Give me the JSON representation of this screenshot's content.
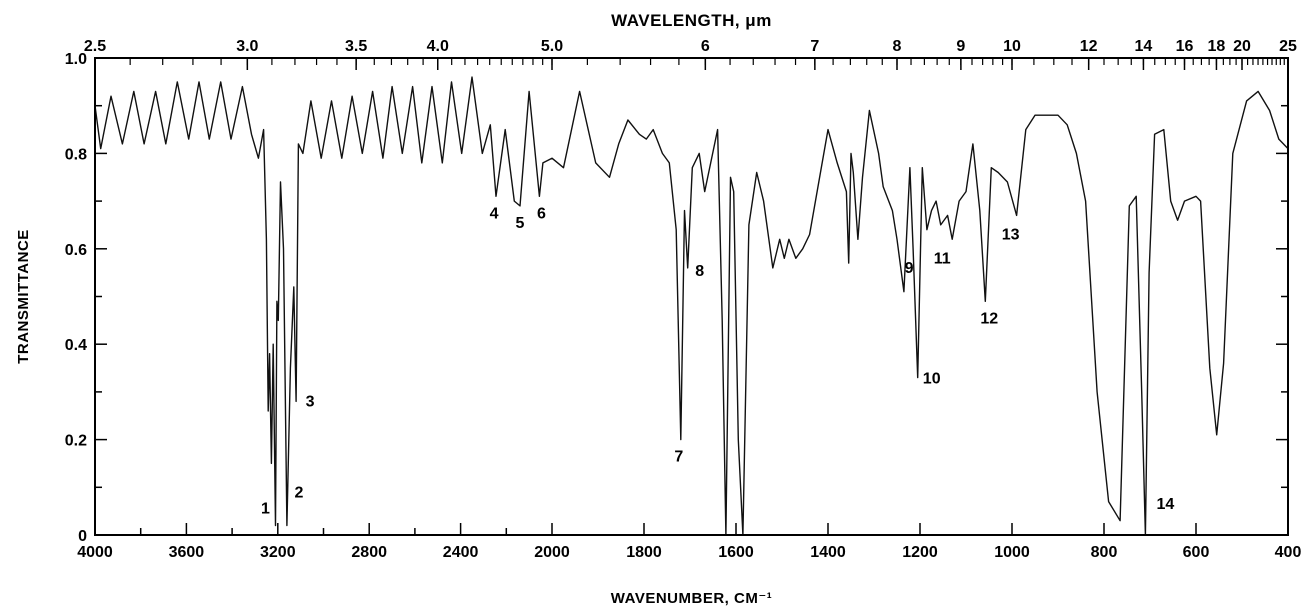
{
  "chart_data": {
    "type": "line",
    "title": "",
    "xlabel": "WAVENUMBER, CM⁻¹",
    "ylabel": "TRANSMITTANCE",
    "top_axis_label": "WAVELENGTH, μm",
    "x_direction": "decreasing",
    "x_scale": "piecewise-linear (4000-2000 compressed, 2000-400 expanded)",
    "xlim": [
      4000,
      400
    ],
    "ylim": [
      0,
      1.0
    ],
    "grid": false,
    "x_ticks": [
      "4000",
      "3600",
      "3200",
      "2800",
      "2400",
      "2000",
      "1800",
      "1600",
      "1400",
      "1200",
      "1000",
      "800",
      "600",
      "400"
    ],
    "y_ticks": [
      "0",
      "0.2",
      "0.4",
      "0.6",
      "0.8",
      "1.0"
    ],
    "top_ticks": [
      {
        "label": "2.5",
        "um": 2.5
      },
      {
        "label": "3.0",
        "um": 3.0
      },
      {
        "label": "3.5",
        "um": 3.5
      },
      {
        "label": "4.0",
        "um": 4.0
      },
      {
        "label": "5.0",
        "um": 5.0
      },
      {
        "label": "6",
        "um": 6
      },
      {
        "label": "7",
        "um": 7
      },
      {
        "label": "8",
        "um": 8
      },
      {
        "label": "9",
        "um": 9
      },
      {
        "label": "10",
        "um": 10
      },
      {
        "label": "12",
        "um": 12
      },
      {
        "label": "14",
        "um": 14
      },
      {
        "label": "16",
        "um": 16
      },
      {
        "label": "18",
        "um": 18
      },
      {
        "label": "20",
        "um": 20
      },
      {
        "label": "25",
        "um": 25
      }
    ],
    "series": [
      {
        "points": [
          [
            4000,
            0.9
          ],
          [
            3975,
            0.81
          ],
          [
            3930,
            0.92
          ],
          [
            3880,
            0.82
          ],
          [
            3830,
            0.93
          ],
          [
            3785,
            0.82
          ],
          [
            3735,
            0.93
          ],
          [
            3690,
            0.82
          ],
          [
            3640,
            0.95
          ],
          [
            3590,
            0.83
          ],
          [
            3545,
            0.95
          ],
          [
            3500,
            0.83
          ],
          [
            3450,
            0.95
          ],
          [
            3405,
            0.83
          ],
          [
            3355,
            0.94
          ],
          [
            3315,
            0.84
          ],
          [
            3285,
            0.79
          ],
          [
            3262,
            0.85
          ],
          [
            3250,
            0.62
          ],
          [
            3242,
            0.26
          ],
          [
            3236,
            0.38
          ],
          [
            3228,
            0.15
          ],
          [
            3220,
            0.4
          ],
          [
            3210,
            0.02
          ],
          [
            3204,
            0.49
          ],
          [
            3198,
            0.45
          ],
          [
            3188,
            0.74
          ],
          [
            3175,
            0.6
          ],
          [
            3160,
            0.02
          ],
          [
            3145,
            0.35
          ],
          [
            3130,
            0.52
          ],
          [
            3120,
            0.28
          ],
          [
            3110,
            0.82
          ],
          [
            3090,
            0.8
          ],
          [
            3055,
            0.91
          ],
          [
            3010,
            0.79
          ],
          [
            2965,
            0.91
          ],
          [
            2920,
            0.79
          ],
          [
            2875,
            0.92
          ],
          [
            2830,
            0.8
          ],
          [
            2785,
            0.93
          ],
          [
            2740,
            0.79
          ],
          [
            2700,
            0.94
          ],
          [
            2655,
            0.8
          ],
          [
            2610,
            0.94
          ],
          [
            2570,
            0.78
          ],
          [
            2525,
            0.94
          ],
          [
            2480,
            0.78
          ],
          [
            2440,
            0.95
          ],
          [
            2395,
            0.8
          ],
          [
            2350,
            0.96
          ],
          [
            2305,
            0.8
          ],
          [
            2270,
            0.86
          ],
          [
            2245,
            0.71
          ],
          [
            2205,
            0.85
          ],
          [
            2165,
            0.7
          ],
          [
            2140,
            0.69
          ],
          [
            2100,
            0.93
          ],
          [
            2055,
            0.71
          ],
          [
            2040,
            0.78
          ],
          [
            2000,
            0.79
          ],
          [
            1975,
            0.77
          ],
          [
            1940,
            0.93
          ],
          [
            1905,
            0.78
          ],
          [
            1875,
            0.75
          ],
          [
            1855,
            0.82
          ],
          [
            1835,
            0.87
          ],
          [
            1810,
            0.84
          ],
          [
            1795,
            0.83
          ],
          [
            1780,
            0.85
          ],
          [
            1760,
            0.8
          ],
          [
            1745,
            0.78
          ],
          [
            1730,
            0.64
          ],
          [
            1720,
            0.2
          ],
          [
            1712,
            0.68
          ],
          [
            1705,
            0.56
          ],
          [
            1695,
            0.77
          ],
          [
            1680,
            0.8
          ],
          [
            1668,
            0.72
          ],
          [
            1655,
            0.78
          ],
          [
            1640,
            0.85
          ],
          [
            1630,
            0.45
          ],
          [
            1622,
            0.0
          ],
          [
            1612,
            0.75
          ],
          [
            1605,
            0.72
          ],
          [
            1595,
            0.2
          ],
          [
            1585,
            0.0
          ],
          [
            1572,
            0.65
          ],
          [
            1555,
            0.76
          ],
          [
            1540,
            0.7
          ],
          [
            1520,
            0.56
          ],
          [
            1505,
            0.62
          ],
          [
            1495,
            0.58
          ],
          [
            1485,
            0.62
          ],
          [
            1470,
            0.58
          ],
          [
            1455,
            0.6
          ],
          [
            1440,
            0.63
          ],
          [
            1420,
            0.74
          ],
          [
            1400,
            0.85
          ],
          [
            1380,
            0.78
          ],
          [
            1360,
            0.72
          ],
          [
            1355,
            0.57
          ],
          [
            1350,
            0.8
          ],
          [
            1345,
            0.76
          ],
          [
            1335,
            0.62
          ],
          [
            1325,
            0.75
          ],
          [
            1310,
            0.89
          ],
          [
            1290,
            0.8
          ],
          [
            1280,
            0.73
          ],
          [
            1260,
            0.68
          ],
          [
            1250,
            0.62
          ],
          [
            1235,
            0.51
          ],
          [
            1222,
            0.77
          ],
          [
            1215,
            0.6
          ],
          [
            1205,
            0.33
          ],
          [
            1195,
            0.77
          ],
          [
            1185,
            0.64
          ],
          [
            1175,
            0.68
          ],
          [
            1165,
            0.7
          ],
          [
            1155,
            0.65
          ],
          [
            1140,
            0.67
          ],
          [
            1130,
            0.62
          ],
          [
            1115,
            0.7
          ],
          [
            1100,
            0.72
          ],
          [
            1085,
            0.82
          ],
          [
            1070,
            0.68
          ],
          [
            1058,
            0.49
          ],
          [
            1045,
            0.77
          ],
          [
            1030,
            0.76
          ],
          [
            1010,
            0.74
          ],
          [
            990,
            0.67
          ],
          [
            970,
            0.85
          ],
          [
            950,
            0.88
          ],
          [
            900,
            0.88
          ],
          [
            880,
            0.86
          ],
          [
            860,
            0.8
          ],
          [
            840,
            0.7
          ],
          [
            815,
            0.3
          ],
          [
            790,
            0.07
          ],
          [
            765,
            0.03
          ],
          [
            745,
            0.69
          ],
          [
            730,
            0.71
          ],
          [
            718,
            0.3
          ],
          [
            710,
            0.0
          ],
          [
            702,
            0.55
          ],
          [
            690,
            0.84
          ],
          [
            670,
            0.85
          ],
          [
            655,
            0.7
          ],
          [
            640,
            0.66
          ],
          [
            625,
            0.7
          ],
          [
            600,
            0.71
          ],
          [
            590,
            0.7
          ],
          [
            570,
            0.35
          ],
          [
            555,
            0.21
          ],
          [
            540,
            0.36
          ],
          [
            520,
            0.8
          ],
          [
            490,
            0.91
          ],
          [
            465,
            0.93
          ],
          [
            440,
            0.89
          ],
          [
            420,
            0.83
          ],
          [
            400,
            0.81
          ]
        ]
      }
    ],
    "annotations": [
      {
        "text": "1",
        "wavenumber": 3210,
        "transmittance": 0.02
      },
      {
        "text": "2",
        "wavenumber": 3160,
        "transmittance": 0.02
      },
      {
        "text": "3",
        "wavenumber": 3120,
        "transmittance": 0.28
      },
      {
        "text": "4",
        "wavenumber": 2245,
        "transmittance": 0.71
      },
      {
        "text": "5",
        "wavenumber": 2140,
        "transmittance": 0.69
      },
      {
        "text": "6",
        "wavenumber": 2055,
        "transmittance": 0.71
      },
      {
        "text": "7",
        "wavenumber": 1720,
        "transmittance": 0.2
      },
      {
        "text": "8",
        "wavenumber": 1705,
        "transmittance": 0.56
      },
      {
        "text": "9",
        "wavenumber": 1215,
        "transmittance": 0.6
      },
      {
        "text": "10",
        "wavenumber": 1205,
        "transmittance": 0.33
      },
      {
        "text": "11",
        "wavenumber": 1130,
        "transmittance": 0.62
      },
      {
        "text": "12",
        "wavenumber": 1058,
        "transmittance": 0.49
      },
      {
        "text": "13",
        "wavenumber": 990,
        "transmittance": 0.67
      },
      {
        "text": "14",
        "wavenumber": 710,
        "transmittance": 0.0
      }
    ]
  }
}
